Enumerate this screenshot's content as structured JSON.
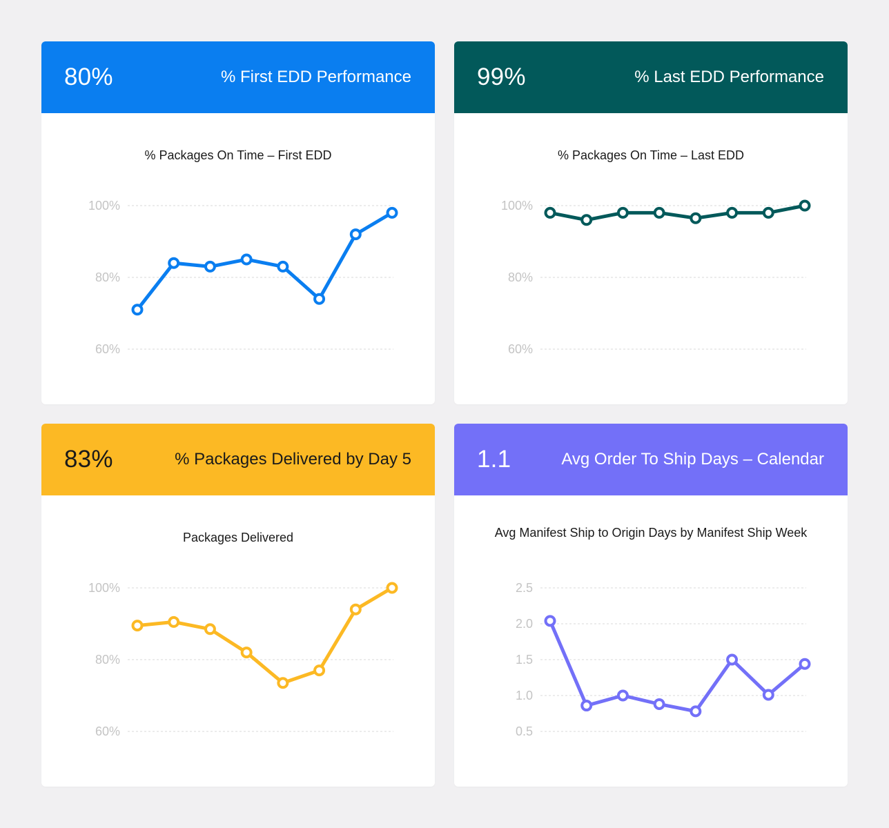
{
  "cards": [
    {
      "kpi_value": "80%",
      "kpi_title": "% First EDD Performance",
      "header_color": "#0a7ef0",
      "header_text_color": "#ffffff",
      "line_color": "#0a7ef0",
      "chart_title": "% Packages On Time – First EDD"
    },
    {
      "kpi_value": "99%",
      "kpi_title": "% Last EDD Performance",
      "header_color": "#02595a",
      "header_text_color": "#ffffff",
      "line_color": "#02595a",
      "chart_title": "% Packages On Time – Last EDD"
    },
    {
      "kpi_value": "83%",
      "kpi_title": "% Packages Delivered by Day 5",
      "header_color": "#fcb924",
      "header_text_color": "#1a1a1a",
      "line_color": "#fcb924",
      "chart_title": "Packages Delivered"
    },
    {
      "kpi_value": "1.1",
      "kpi_title": "Avg Order To Ship Days – Calendar",
      "header_color": "#7370f8",
      "header_text_color": "#ffffff",
      "line_color": "#7370f8",
      "chart_title": "Avg Manifest Ship to Origin Days by Manifest Ship Week"
    }
  ],
  "chart_data": [
    {
      "type": "line",
      "title": "% Packages On Time – First EDD",
      "xlabel": "",
      "ylabel": "",
      "x": [
        1,
        2,
        3,
        4,
        5,
        6,
        7,
        8
      ],
      "values": [
        71,
        84,
        83,
        85,
        83,
        74,
        92,
        98
      ],
      "ylim": [
        60,
        100
      ],
      "yticks": [
        100,
        80,
        60
      ],
      "ytick_labels": [
        "100%",
        "80%",
        "60%"
      ],
      "grid": true
    },
    {
      "type": "line",
      "title": "% Packages On Time – Last EDD",
      "xlabel": "",
      "ylabel": "",
      "x": [
        1,
        2,
        3,
        4,
        5,
        6,
        7,
        8
      ],
      "values": [
        98,
        96,
        98,
        98,
        96.5,
        98,
        98,
        100
      ],
      "ylim": [
        60,
        100
      ],
      "yticks": [
        100,
        80,
        60
      ],
      "ytick_labels": [
        "100%",
        "80%",
        "60%"
      ],
      "grid": true
    },
    {
      "type": "line",
      "title": "Packages Delivered",
      "xlabel": "",
      "ylabel": "",
      "x": [
        1,
        2,
        3,
        4,
        5,
        6,
        7,
        8
      ],
      "values": [
        89.5,
        90.5,
        88.5,
        82,
        73.5,
        77,
        94,
        100
      ],
      "ylim": [
        60,
        100
      ],
      "yticks": [
        100,
        80,
        60
      ],
      "ytick_labels": [
        "100%",
        "80%",
        "60%"
      ],
      "grid": true
    },
    {
      "type": "line",
      "title": "Avg Manifest Ship to Origin Days by Manifest Ship Week",
      "xlabel": "",
      "ylabel": "",
      "x": [
        1,
        2,
        3,
        4,
        5,
        6,
        7,
        8
      ],
      "values": [
        2.04,
        0.86,
        1.0,
        0.88,
        0.78,
        1.5,
        1.01,
        1.44
      ],
      "ylim": [
        0.5,
        2.5
      ],
      "yticks": [
        2.5,
        2.0,
        1.5,
        1.0,
        0.5
      ],
      "ytick_labels": [
        "2.5",
        "2.0",
        "1.5",
        "1.0",
        "0.5"
      ],
      "grid": true
    }
  ]
}
